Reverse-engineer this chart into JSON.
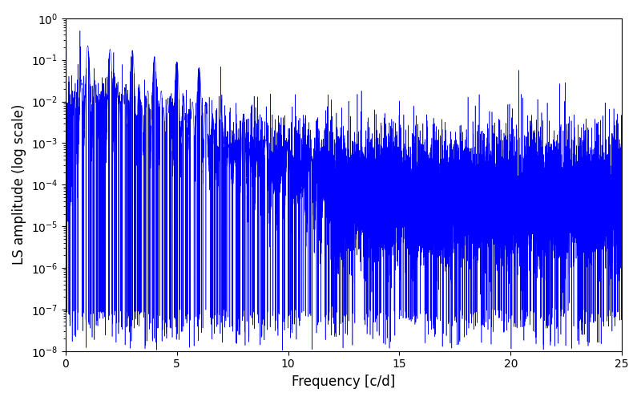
{
  "xlabel": "Frequency [c/d]",
  "ylabel": "LS amplitude (log scale)",
  "xlim": [
    0,
    25
  ],
  "ylim": [
    1e-08,
    1.0
  ],
  "line_color": "#0000ff",
  "line_width": 0.4,
  "background_color": "#ffffff",
  "seed": 12345,
  "n_points": 15000,
  "freq_max": 25.0,
  "peak_freqs": [
    1.0,
    2.0,
    3.0,
    4.0,
    5.0,
    6.0,
    7.0,
    8.0,
    9.0,
    10.0,
    11.0
  ],
  "peak_heights": [
    0.22,
    0.18,
    0.17,
    0.12,
    0.09,
    0.065,
    0.006,
    0.005,
    0.0012,
    0.0012,
    0.0008
  ],
  "figsize": [
    8.0,
    5.0
  ],
  "dpi": 100
}
